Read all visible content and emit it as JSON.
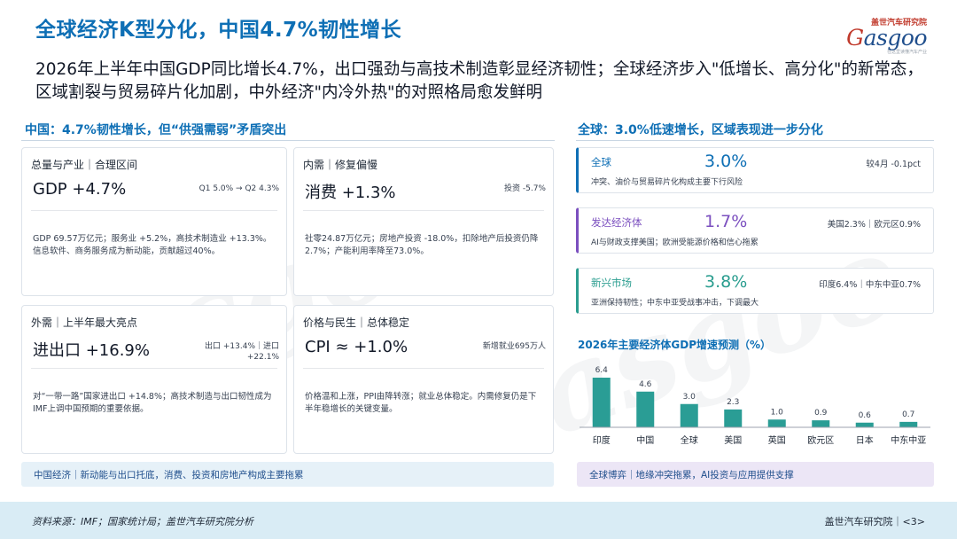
{
  "title": "全球经济K型分化，中国4.7%韧性增长",
  "logo": {
    "top": "盖世汽车研究院",
    "word_g": "G",
    "word_rest": "asgoo",
    "sub": "在这里读懂汽车产业"
  },
  "subtitle": "2026年上半年中国GDP同比增长4.7%，出口强劲与高技术制造彰显经济韧性；全球经济步入\"低增长、高分化\"的新常态，区域割裂与贸易碎片化加剧，中外经济\"内冷外热\"的对照格局愈发鲜明",
  "china": {
    "section_title": "中国：4.7%韧性增长，但“供强需弱”矛盾突出",
    "cards": [
      {
        "head": "总量与产业｜合理区间",
        "big": "GDP +4.7%",
        "side": "Q1 5.0% → Q2 4.3%",
        "desc": "GDP 69.57万亿元；服务业 +5.2%，高技术制造业 +13.3%。信息软件、商务服务成为新动能，贡献超过40%。"
      },
      {
        "head": "内需｜修复偏慢",
        "big": "消费 +1.3%",
        "side": "投资 -5.7%",
        "desc": "社零24.87万亿元；房地产投资 -18.0%，扣除地产后投资仍降2.7%；产能利用率降至73.0%。"
      },
      {
        "head": "外需｜上半年最大亮点",
        "big": "进出口 +16.9%",
        "side": "出口 +13.4%｜进口 +22.1%",
        "desc": "对“一带一路”国家进出口 +14.8%；高技术制造与出口韧性成为IMF上调中国预期的重要依据。"
      },
      {
        "head": "价格与民生｜总体稳定",
        "big": "CPI ≈ +1.0%",
        "side": "新增就业695万人",
        "desc": "价格温和上涨，PPI由降转涨；就业总体稳定。内需修复仍是下半年稳增长的关键变量。"
      }
    ],
    "note": "中国经济｜新动能与出口托底，消费、投资和房地产构成主要拖累"
  },
  "global": {
    "section_title": "全球：3.0%低速增长，区域表现进一步分化",
    "rows": [
      {
        "name": "全球",
        "value": "3.0%",
        "note": "较4月 -0.1pct",
        "desc": "冲突、油价与贸易碎片化构成主要下行风险",
        "color": "#0e6fb5"
      },
      {
        "name": "发达经济体",
        "value": "1.7%",
        "note": "美国2.3%｜欧元区0.9%",
        "desc": "AI与财政支撑美国；欧洲受能源价格和信心拖累",
        "color": "#7b4fbf"
      },
      {
        "name": "新兴市场",
        "value": "3.8%",
        "note": "印度6.4%｜中东中亚0.7%",
        "desc": "亚洲保持韧性；中东中亚受战事冲击，下调最大",
        "color": "#2a9d8f"
      }
    ],
    "note": "全球博弈｜地缘冲突拖累，AI投资与应用提供支撑"
  },
  "chart_data": {
    "type": "bar",
    "title": "2026年主要经济体GDP增速预测（%）",
    "categories": [
      "印度",
      "中国",
      "全球",
      "美国",
      "英国",
      "欧元区",
      "日本",
      "中东中亚"
    ],
    "values": [
      6.4,
      4.6,
      3.0,
      2.3,
      1.0,
      0.9,
      0.6,
      0.7
    ],
    "ylim": [
      0,
      6.4
    ],
    "color": "#2a9d95",
    "grid": false,
    "legend": "none"
  },
  "footer": {
    "source": "资料来源：IMF；国家统计局；盖世汽车研究院分析",
    "right": "盖世汽车研究院｜<3>"
  }
}
